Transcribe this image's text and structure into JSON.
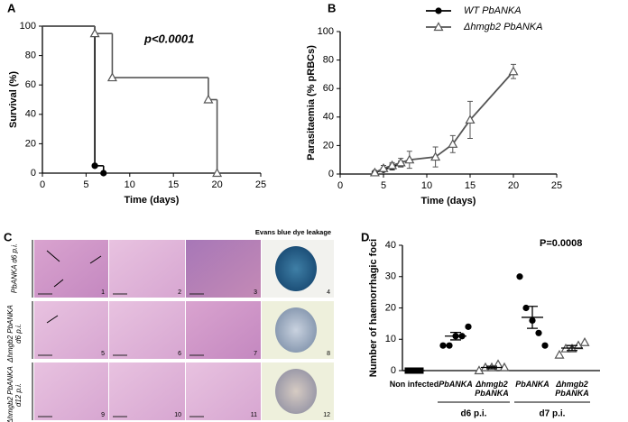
{
  "chart_data": [
    {
      "type": "survival",
      "panel": "A",
      "xlabel": "Time (days)",
      "ylabel": "Survival (%)",
      "annotation": "p<0.0001",
      "xlim": [
        0,
        25
      ],
      "xticks": [
        0,
        5,
        10,
        15,
        20,
        25
      ],
      "ylim": [
        0,
        100
      ],
      "yticks": [
        0,
        20,
        40,
        60,
        80,
        100
      ],
      "series": [
        {
          "name": "WT PbANKA",
          "color": "#000000",
          "marker": "circle",
          "x": [
            0,
            6,
            7
          ],
          "values": [
            100,
            5,
            0
          ]
        },
        {
          "name": "Δhmgb2 PbANKA",
          "color": "#555555",
          "marker": "triangle",
          "x": [
            0,
            6,
            8,
            19,
            20
          ],
          "values": [
            100,
            95,
            65,
            50,
            0
          ]
        }
      ]
    },
    {
      "type": "line",
      "panel": "B",
      "xlabel": "Time (days)",
      "ylabel": "Parasitaemia (% pRBCs)",
      "xlim": [
        0,
        25
      ],
      "xticks": [
        0,
        5,
        10,
        15,
        20,
        25
      ],
      "ylim": [
        0,
        100
      ],
      "yticks": [
        0,
        20,
        40,
        60,
        80,
        100
      ],
      "series": [
        {
          "name": "WT PbANKA",
          "color": "#000000",
          "marker": "circle",
          "x": [
            4,
            5,
            6,
            7
          ],
          "values": [
            1,
            3,
            5,
            7
          ],
          "errors": [
            1,
            1,
            2,
            2
          ]
        },
        {
          "name": "Δhmgb2 PbANKA",
          "color": "#555555",
          "marker": "triangle",
          "x": [
            4,
            5,
            6,
            7,
            8,
            11,
            13,
            15,
            20
          ],
          "values": [
            1,
            4,
            6,
            8,
            10,
            12,
            21,
            38,
            72
          ],
          "errors": [
            1,
            2,
            2,
            3,
            6,
            7,
            6,
            13,
            5
          ]
        }
      ]
    },
    {
      "type": "dot",
      "panel": "D",
      "ylabel": "Number of haemorrhagic foci",
      "annotation": "P=0.0008",
      "ylim": [
        0,
        40
      ],
      "yticks": [
        0,
        10,
        20,
        30,
        40
      ],
      "categories": [
        "Non infected",
        "PbANKA",
        "Δhmgb2 PbANKA",
        "PbANKA",
        "Δhmgb2 PbANKA"
      ],
      "group_labels": [
        "d6 p.i.",
        "d7 p.i."
      ],
      "groups": [
        {
          "marker": "square",
          "values": [
            0,
            0,
            0
          ],
          "mean": 0,
          "sem": 0
        },
        {
          "marker": "circle",
          "values": [
            8,
            8,
            11,
            11,
            14
          ],
          "mean": 11,
          "sem": 1.2
        },
        {
          "marker": "triangle",
          "values": [
            0,
            1,
            1,
            2,
            1
          ],
          "mean": 1,
          "sem": 0.4
        },
        {
          "marker": "circle",
          "values": [
            30,
            20,
            16,
            12,
            8
          ],
          "mean": 17,
          "sem": 3.5
        },
        {
          "marker": "triangle",
          "values": [
            5,
            7,
            7,
            8,
            9
          ],
          "mean": 7.2,
          "sem": 0.8
        }
      ]
    }
  ],
  "panel_c": {
    "label": "C",
    "header": "Evans blue dye leakage",
    "rows": [
      {
        "label": "PbANKA d6 p.i.",
        "images": [
          "1",
          "2",
          "3",
          "4"
        ]
      },
      {
        "label": "Δhmgb2 PbANKA d6 p.i.",
        "images": [
          "5",
          "6",
          "7",
          "8"
        ]
      },
      {
        "label": "Δhmgb2 PbANKA d12 p.i.",
        "images": [
          "9",
          "10",
          "11",
          "12"
        ]
      }
    ]
  }
}
